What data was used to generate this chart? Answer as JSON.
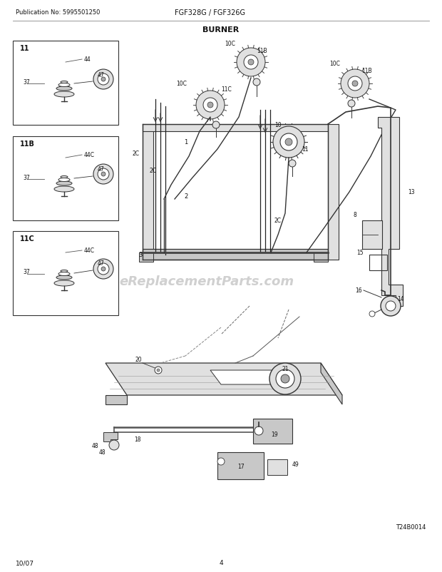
{
  "title": "BURNER",
  "pub_no": "Publication No: 5995501250",
  "model": "FGF328G / FGF326G",
  "page": "4",
  "date": "10/07",
  "diagram_code": "T24B0014",
  "watermark": "eReplacementParts.com",
  "bg_color": "#ffffff",
  "line_color": "#333333",
  "text_color": "#111111",
  "watermark_color": "#d0d0d0",
  "gray1": "#c8c8c8",
  "gray2": "#e0e0e0",
  "gray3": "#aaaaaa"
}
